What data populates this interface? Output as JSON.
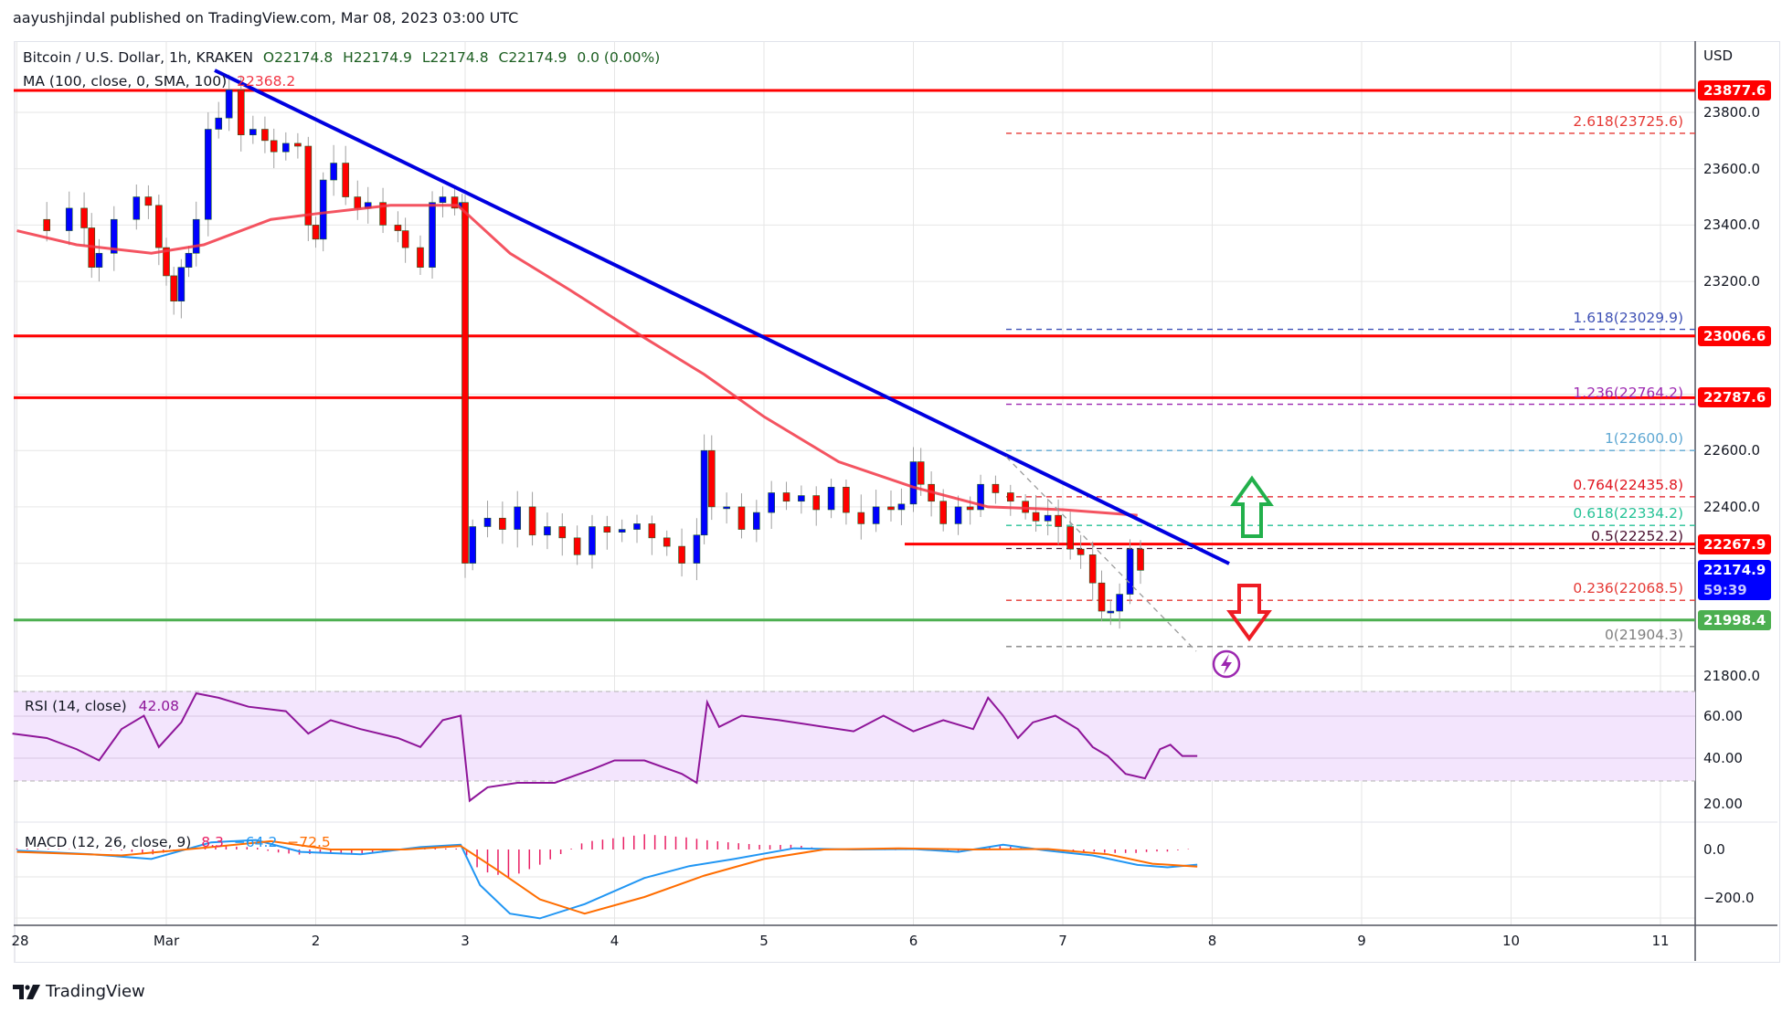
{
  "publisher_line": "aayushjindal published on TradingView.com, Mar 08, 2023 03:00 UTC",
  "symbol": {
    "name": "Bitcoin / U.S. Dollar, 1h, KRAKEN",
    "open": "O22174.8",
    "high": "H22174.9",
    "low": "L22174.8",
    "close": "C22174.9",
    "change": "0.0 (0.00%)"
  },
  "ma_legend": {
    "label": "MA (100, close, 0, SMA, 100)",
    "value": "22368.2"
  },
  "rsi_legend": {
    "label": "RSI (14, close)",
    "value": "42.08"
  },
  "macd_legend": {
    "label": "MACD (12, 26, close, 9)",
    "hist": "8.3",
    "macd": "−64.2",
    "signal": "−72.5"
  },
  "price_axis": {
    "currency": "USD",
    "ticks": [
      "23800.0",
      "23600.0",
      "23400.0",
      "23200.0",
      "22600.0",
      "22400.0",
      "21800.0"
    ],
    "tags": [
      {
        "value": "23877.6",
        "color": "#ff0000"
      },
      {
        "value": "23006.6",
        "color": "#ff0000"
      },
      {
        "value": "22787.6",
        "color": "#ff0000"
      },
      {
        "value": "22267.9",
        "color": "#ff0000"
      },
      {
        "value": "22174.9",
        "countdown": "59:39",
        "color": "#0000ff"
      },
      {
        "value": "21998.4",
        "color": "#4caf50"
      }
    ]
  },
  "rsi_axis": {
    "ticks": [
      "60.00",
      "40.00",
      "20.00"
    ]
  },
  "macd_axis": {
    "ticks": [
      "0.0",
      "−200.0"
    ]
  },
  "time_axis": {
    "ticks": [
      "28",
      "Mar",
      "2",
      "3",
      "4",
      "5",
      "6",
      "7",
      "8",
      "9",
      "10",
      "11"
    ]
  },
  "fib_levels": [
    {
      "label": "2.618(23725.6)",
      "price": 23725.6,
      "color": "#e53935"
    },
    {
      "label": "1.618(23029.9)",
      "price": 23029.9,
      "color": "#3f51b5"
    },
    {
      "label": "1.236(22764.2)",
      "price": 22764.2,
      "color": "#9c27b0"
    },
    {
      "label": "1(22600.0)",
      "price": 22600.0,
      "color": "#5fa8d3"
    },
    {
      "label": "0.764(22435.8)",
      "price": 22435.8,
      "color": "#e0151f"
    },
    {
      "label": "0.618(22334.2)",
      "price": 22334.2,
      "color": "#26c296"
    },
    {
      "label": "0.5(22252.2)",
      "price": 22252.2,
      "color": "#4a1030"
    },
    {
      "label": "0.236(22068.5)",
      "price": 22068.5,
      "color": "#e53935"
    },
    {
      "label": "0(21904.3)",
      "price": 21904.3,
      "color": "#808080"
    }
  ],
  "horizontal_levels": [
    {
      "price": 23877.6,
      "color": "#ff0000",
      "kind": "resistance"
    },
    {
      "price": 23006.6,
      "color": "#ff0000",
      "kind": "resistance"
    },
    {
      "price": 22787.6,
      "color": "#ff0000",
      "kind": "resistance"
    },
    {
      "price": 22267.9,
      "color": "#ff0000",
      "kind": "resistance-short"
    },
    {
      "price": 21998.4,
      "color": "#4caf50",
      "kind": "support"
    }
  ],
  "branding": {
    "logo_text": "TradingView"
  },
  "colors": {
    "up": "#0000ff",
    "down": "#ff0000",
    "ma": "#f23645",
    "trendline": "#0000e0",
    "rsi": "#8e1599",
    "rsi_band": "#f3e5fd",
    "macd": "#2196f3",
    "signal": "#ff6d00",
    "hist": "#e91e63",
    "arrow_up": "#22b04b",
    "arrow_down": "#ee1c24"
  },
  "chart_data": {
    "type": "candlestick",
    "title": "Bitcoin / U.S. Dollar, 1h, KRAKEN",
    "xlabel": "",
    "ylabel": "USD",
    "ylim": [
      21760,
      23960
    ],
    "x_ticks": [
      "28",
      "Mar",
      "2",
      "3",
      "4",
      "5",
      "6",
      "7",
      "8",
      "9",
      "10",
      "11"
    ],
    "series": [
      {
        "name": "BTCUSD close (approx, sampled)",
        "x": [
          "Feb 28",
          "Mar 1 00h",
          "Mar 1 08h",
          "Mar 1 16h",
          "Mar 2 00h",
          "Mar 2 12h",
          "Mar 3 00h",
          "Mar 3 02h",
          "Mar 3 12h",
          "Mar 4 00h",
          "Mar 4 12h",
          "Mar 5 00h",
          "Mar 5 06h",
          "Mar 5 18h",
          "Mar 6 12h",
          "Mar 6 20h",
          "Mar 7 06h",
          "Mar 7 18h",
          "Mar 7 22h",
          "Mar 8 03h"
        ],
        "values": [
          23420,
          23150,
          23830,
          23700,
          23480,
          23500,
          23460,
          22200,
          22330,
          22340,
          22290,
          22200,
          22580,
          22380,
          22390,
          22560,
          22420,
          22250,
          22020,
          22175
        ]
      },
      {
        "name": "MA (100, SMA)",
        "x": [
          "Feb 28",
          "Mar 1",
          "Mar 2",
          "Mar 3",
          "Mar 4",
          "Mar 5",
          "Mar 6",
          "Mar 7",
          "Mar 8"
        ],
        "values": [
          23380,
          23290,
          23450,
          23470,
          23130,
          22880,
          22620,
          22420,
          22368
        ]
      }
    ],
    "annotations": {
      "trendline": {
        "from": {
          "x": "Mar 1 ~08h",
          "price": 23950
        },
        "to": {
          "x": "Mar 8 ~06h",
          "price": 22220
        },
        "color": "#0000e0"
      },
      "fibonacci": [
        2.618,
        1.618,
        1.236,
        1,
        0.764,
        0.618,
        0.5,
        0.236,
        0
      ],
      "arrows": [
        "up (green) above 22267.9",
        "down (red) below 22068.5"
      ],
      "levels": [
        23877.6,
        23006.6,
        22787.6,
        22267.9,
        21998.4
      ],
      "last_price": 22174.9
    },
    "rsi": {
      "period": 14,
      "last": 42.08,
      "ylim": [
        10,
        80
      ],
      "band": [
        30,
        70
      ],
      "approx_values": [
        53,
        52,
        45,
        58,
        62,
        38,
        72,
        70,
        64,
        60,
        62,
        20,
        31,
        34,
        40,
        50,
        44,
        36,
        67,
        52,
        58,
        54,
        48,
        55,
        46,
        40,
        35,
        28,
        47,
        42
      ]
    },
    "macd": {
      "params": [
        12,
        26,
        9
      ],
      "macd": -64.2,
      "signal": -72.5,
      "histogram": 8.3,
      "ylim": [
        -330,
        120
      ]
    }
  }
}
